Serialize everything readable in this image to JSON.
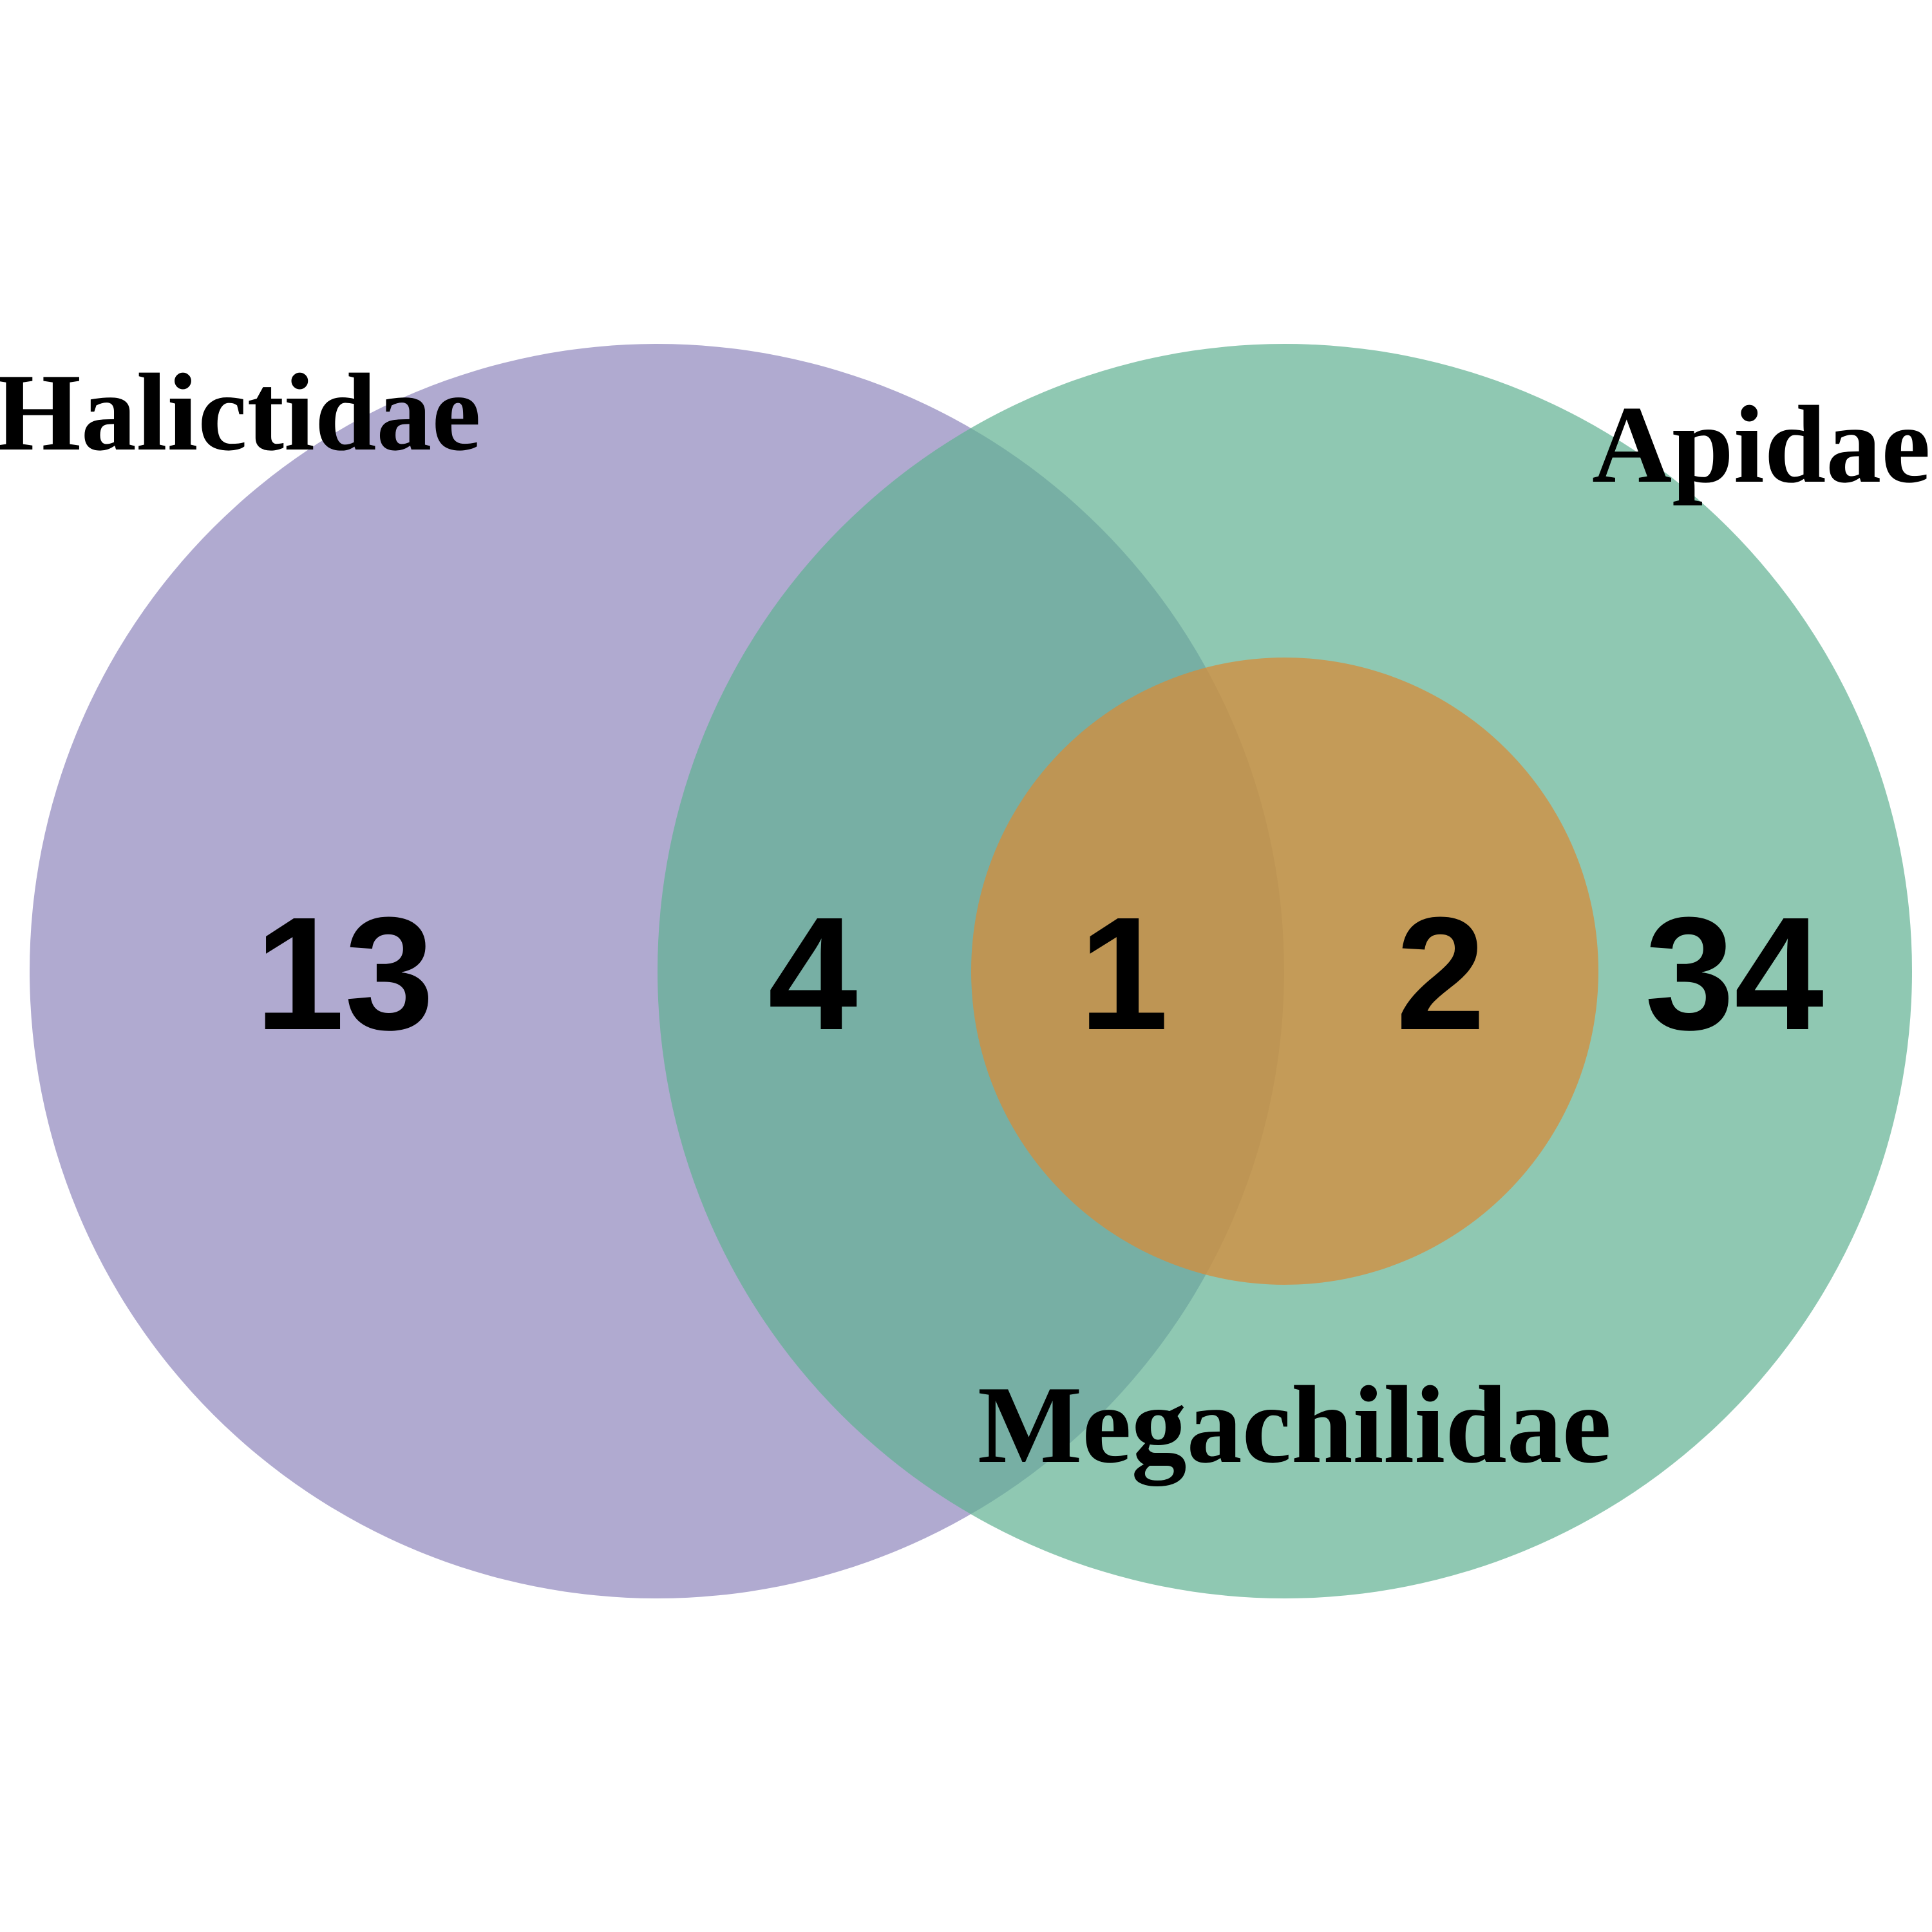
{
  "sets": {
    "halictidae": {
      "label": "Halictidae",
      "color": "#8e86bc"
    },
    "apidae": {
      "label": "Apidae",
      "color": "#5fb092"
    },
    "megachilidae": {
      "label": "Megachilidae",
      "color": "#d68c3a"
    }
  },
  "regions": {
    "halictidae_only": "13",
    "halictidae_apidae": "4",
    "all_three": "1",
    "apidae_megachilidae": "2",
    "apidae_only": "34"
  }
}
